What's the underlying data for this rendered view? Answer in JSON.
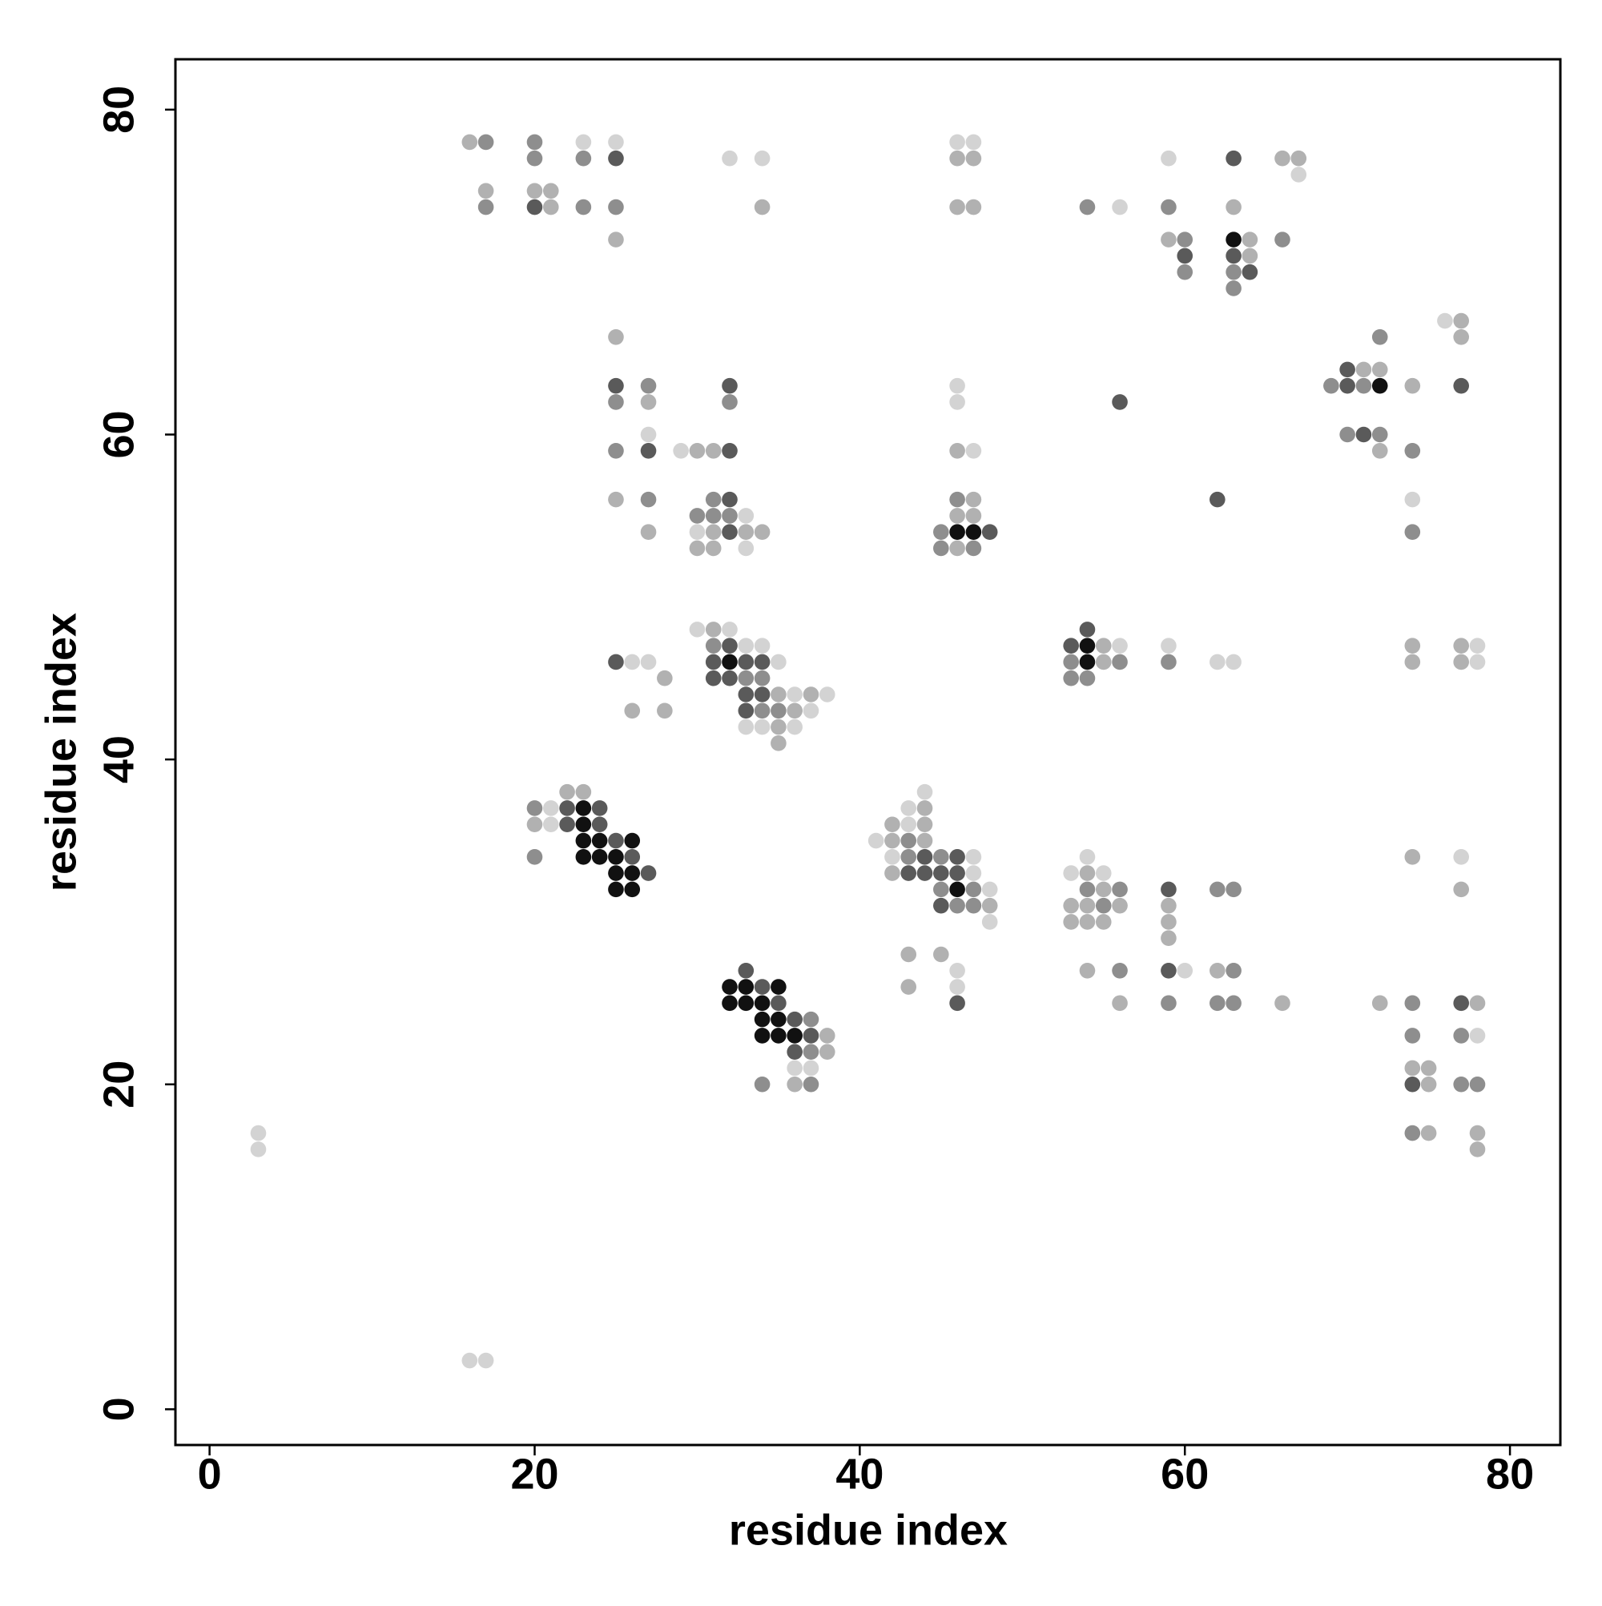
{
  "chart_data": {
    "type": "scatter",
    "xlabel": "residue index",
    "ylabel": "residue index",
    "xlim": [
      -2.1,
      83.1
    ],
    "ylim": [
      -2.2,
      83.1
    ],
    "xticks": [
      0,
      20,
      40,
      60,
      80
    ],
    "yticks": [
      0,
      20,
      40,
      60,
      80
    ],
    "series": [
      {
        "color": "#d3d3d3",
        "x": [
          23,
          25,
          46,
          47,
          32,
          34,
          59,
          67,
          56,
          76,
          46,
          46,
          27,
          29,
          47,
          74,
          33,
          30,
          33,
          30,
          32,
          33,
          34,
          56,
          59,
          78,
          26,
          27,
          35,
          62,
          63,
          78,
          36,
          38,
          37,
          33,
          34,
          36,
          44,
          21,
          43,
          21,
          43,
          41,
          42,
          47,
          54,
          77,
          47,
          53,
          55,
          48,
          48,
          46,
          60,
          46,
          78,
          36,
          37,
          3,
          3,
          16,
          17
        ],
        "y": [
          78,
          78,
          78,
          78,
          77,
          77,
          77,
          76,
          74,
          67,
          63,
          62,
          60,
          59,
          59,
          56,
          55,
          54,
          53,
          48,
          48,
          47,
          47,
          47,
          47,
          47,
          46,
          46,
          46,
          46,
          46,
          46,
          44,
          44,
          43,
          42,
          42,
          42,
          38,
          37,
          37,
          36,
          36,
          35,
          34,
          34,
          34,
          34,
          33,
          33,
          33,
          32,
          30,
          27,
          27,
          26,
          23,
          21,
          21,
          17,
          16,
          3,
          3
        ]
      },
      {
        "color": "#b1b1b1",
        "x": [
          16,
          46,
          47,
          66,
          67,
          17,
          20,
          21,
          21,
          34,
          46,
          47,
          63,
          25,
          59,
          64,
          64,
          77,
          25,
          77,
          71,
          72,
          74,
          27,
          30,
          31,
          46,
          72,
          25,
          47,
          46,
          47,
          27,
          31,
          33,
          34,
          30,
          31,
          46,
          31,
          55,
          74,
          77,
          55,
          74,
          77,
          28,
          35,
          37,
          26,
          28,
          36,
          35,
          35,
          22,
          23,
          44,
          20,
          42,
          44,
          42,
          44,
          74,
          42,
          54,
          55,
          77,
          48,
          53,
          54,
          56,
          59,
          53,
          54,
          55,
          59,
          59,
          43,
          45,
          54,
          62,
          43,
          56,
          66,
          72,
          78,
          38,
          38,
          74,
          75,
          36,
          75,
          75,
          78,
          78
        ],
        "y": [
          78,
          77,
          77,
          77,
          77,
          75,
          75,
          75,
          74,
          74,
          74,
          74,
          74,
          72,
          72,
          72,
          71,
          67,
          66,
          66,
          64,
          64,
          63,
          62,
          59,
          59,
          59,
          59,
          56,
          56,
          55,
          55,
          54,
          54,
          54,
          54,
          53,
          53,
          53,
          48,
          47,
          47,
          47,
          46,
          46,
          46,
          45,
          44,
          44,
          43,
          43,
          43,
          42,
          41,
          38,
          38,
          37,
          36,
          36,
          36,
          35,
          35,
          34,
          33,
          33,
          32,
          32,
          31,
          31,
          31,
          31,
          31,
          30,
          30,
          30,
          30,
          29,
          28,
          28,
          27,
          27,
          26,
          25,
          25,
          25,
          25,
          23,
          22,
          21,
          21,
          20,
          20,
          17,
          17,
          16
        ]
      },
      {
        "color": "#8e8e8e",
        "x": [
          17,
          20,
          20,
          23,
          17,
          23,
          25,
          54,
          59,
          60,
          66,
          60,
          63,
          63,
          72,
          27,
          69,
          71,
          25,
          32,
          70,
          72,
          25,
          74,
          27,
          31,
          46,
          30,
          31,
          32,
          45,
          74,
          45,
          47,
          31,
          53,
          56,
          59,
          33,
          34,
          53,
          54,
          34,
          35,
          20,
          43,
          20,
          43,
          45,
          45,
          47,
          54,
          56,
          62,
          63,
          46,
          47,
          55,
          56,
          63,
          59,
          62,
          63,
          74,
          37,
          74,
          77,
          37,
          34,
          37,
          77,
          78,
          74
        ],
        "y": [
          78,
          78,
          77,
          77,
          74,
          74,
          74,
          74,
          74,
          72,
          72,
          70,
          70,
          69,
          66,
          63,
          63,
          63,
          62,
          62,
          60,
          60,
          59,
          59,
          56,
          56,
          56,
          55,
          55,
          55,
          54,
          54,
          53,
          53,
          47,
          46,
          46,
          46,
          45,
          45,
          45,
          45,
          43,
          43,
          37,
          35,
          34,
          34,
          34,
          32,
          32,
          32,
          32,
          32,
          32,
          31,
          31,
          31,
          27,
          27,
          25,
          25,
          25,
          25,
          24,
          23,
          23,
          22,
          20,
          20,
          20,
          20,
          17
        ]
      },
      {
        "color": "#5a5a5a",
        "x": [
          25,
          63,
          20,
          60,
          63,
          64,
          70,
          25,
          32,
          70,
          77,
          56,
          71,
          27,
          32,
          32,
          62,
          32,
          48,
          54,
          32,
          53,
          25,
          31,
          33,
          34,
          31,
          32,
          33,
          34,
          33,
          22,
          24,
          22,
          24,
          25,
          26,
          44,
          46,
          27,
          43,
          44,
          45,
          46,
          59,
          45,
          33,
          59,
          34,
          35,
          46,
          77,
          36,
          37,
          36,
          74
        ],
        "y": [
          77,
          77,
          74,
          71,
          71,
          70,
          64,
          63,
          63,
          63,
          63,
          62,
          60,
          59,
          59,
          56,
          56,
          54,
          54,
          48,
          47,
          47,
          46,
          46,
          46,
          46,
          45,
          45,
          44,
          44,
          43,
          37,
          37,
          36,
          36,
          35,
          34,
          34,
          34,
          33,
          33,
          33,
          33,
          33,
          32,
          31,
          27,
          27,
          26,
          25,
          25,
          25,
          24,
          23,
          22,
          20
        ]
      },
      {
        "color": "#111111",
        "x": [
          63,
          72,
          46,
          47,
          54,
          32,
          54,
          23,
          23,
          23,
          24,
          26,
          23,
          24,
          25,
          25,
          26,
          25,
          26,
          46,
          32,
          33,
          35,
          32,
          33,
          34,
          34,
          35,
          34,
          35,
          36
        ],
        "y": [
          72,
          63,
          54,
          54,
          47,
          46,
          46,
          37,
          36,
          35,
          35,
          35,
          34,
          34,
          34,
          33,
          33,
          32,
          32,
          32,
          26,
          26,
          26,
          25,
          25,
          25,
          24,
          24,
          23,
          23,
          23
        ]
      }
    ]
  }
}
